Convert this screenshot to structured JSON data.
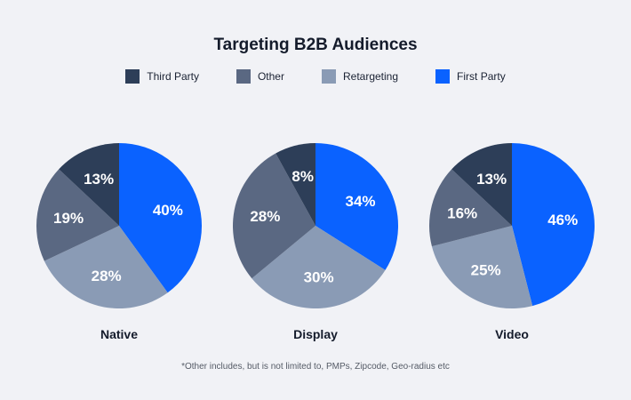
{
  "chart_data": [
    {
      "type": "pie",
      "title": "Native",
      "categories": [
        "First Party",
        "Retargeting",
        "Other",
        "Third Party"
      ],
      "values": [
        40,
        28,
        19,
        13
      ]
    },
    {
      "type": "pie",
      "title": "Display",
      "categories": [
        "First Party",
        "Retargeting",
        "Other",
        "Third Party"
      ],
      "values": [
        34,
        30,
        28,
        8
      ]
    },
    {
      "type": "pie",
      "title": "Video",
      "categories": [
        "First Party",
        "Retargeting",
        "Other",
        "Third Party"
      ],
      "values": [
        46,
        25,
        16,
        13
      ]
    }
  ],
  "title": "Targeting B2B Audiences",
  "legend": [
    {
      "label": "Third Party",
      "color": "#2d3e58"
    },
    {
      "label": "Other",
      "color": "#5a6882"
    },
    {
      "label": "Retargeting",
      "color": "#8a9bb5"
    },
    {
      "label": "First Party",
      "color": "#0a62ff"
    }
  ],
  "colors": {
    "First Party": "#0a62ff",
    "Retargeting": "#8a9bb5",
    "Other": "#5a6882",
    "Third Party": "#2d3e58"
  },
  "footnote": "*Other includes, but is not limited to, PMPs, Zipcode, Geo-radius etc",
  "legend_placement": "top"
}
